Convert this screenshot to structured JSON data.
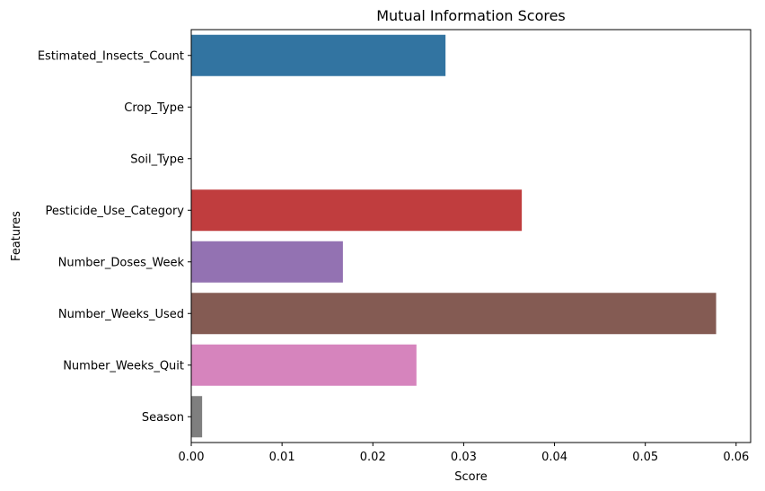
{
  "chart_data": {
    "type": "bar",
    "orientation": "horizontal",
    "title": "Mutual Information Scores",
    "xlabel": "Score",
    "ylabel": "Features",
    "xlim": [
      0,
      0.0616
    ],
    "xticks": [
      0,
      0.01,
      0.02,
      0.03,
      0.04,
      0.05,
      0.06
    ],
    "xtick_labels": [
      "0.00",
      "0.01",
      "0.02",
      "0.03",
      "0.04",
      "0.05",
      "0.06"
    ],
    "grid": false,
    "legend": "none",
    "categories": [
      "Estimated_Insects_Count",
      "Crop_Type",
      "Soil_Type",
      "Pesticide_Use_Category",
      "Number_Doses_Week",
      "Number_Weeks_Used",
      "Number_Weeks_Quit",
      "Season"
    ],
    "values": [
      0.028,
      0.0,
      0.0,
      0.0364,
      0.0167,
      0.0578,
      0.0248,
      0.0012
    ],
    "colors": [
      "#3274a1",
      "#e1812c",
      "#3a923a",
      "#c03d3e",
      "#9372b2",
      "#845b53",
      "#d684bd",
      "#7f7f7f"
    ]
  }
}
